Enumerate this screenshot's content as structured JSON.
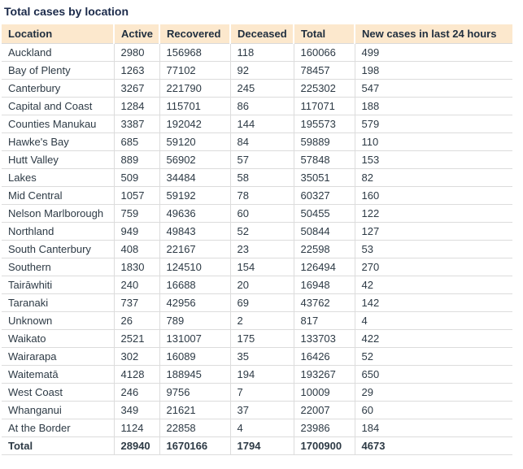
{
  "title": "Total cases by location",
  "chart_data": {
    "type": "table",
    "title": "Total cases by location",
    "columns": [
      "Location",
      "Active",
      "Recovered",
      "Deceased",
      "Total",
      "New cases in last 24 hours"
    ],
    "rows": [
      [
        "Auckland",
        "2980",
        "156968",
        "118",
        "160066",
        "499"
      ],
      [
        "Bay of Plenty",
        "1263",
        "77102",
        "92",
        "78457",
        "198"
      ],
      [
        "Canterbury",
        "3267",
        "221790",
        "245",
        "225302",
        "547"
      ],
      [
        "Capital and Coast",
        "1284",
        "115701",
        "86",
        "117071",
        "188"
      ],
      [
        "Counties Manukau",
        "3387",
        "192042",
        "144",
        "195573",
        "579"
      ],
      [
        "Hawke's Bay",
        "685",
        "59120",
        "84",
        "59889",
        "110"
      ],
      [
        "Hutt Valley",
        "889",
        "56902",
        "57",
        "57848",
        "153"
      ],
      [
        "Lakes",
        "509",
        "34484",
        "58",
        "35051",
        "82"
      ],
      [
        "Mid Central",
        "1057",
        "59192",
        "78",
        "60327",
        "160"
      ],
      [
        "Nelson Marlborough",
        "759",
        "49636",
        "60",
        "50455",
        "122"
      ],
      [
        "Northland",
        "949",
        "49843",
        "52",
        "50844",
        "127"
      ],
      [
        "South Canterbury",
        "408",
        "22167",
        "23",
        "22598",
        "53"
      ],
      [
        "Southern",
        "1830",
        "124510",
        "154",
        "126494",
        "270"
      ],
      [
        "Tairāwhiti",
        "240",
        "16688",
        "20",
        "16948",
        "42"
      ],
      [
        "Taranaki",
        "737",
        "42956",
        "69",
        "43762",
        "142"
      ],
      [
        "Unknown",
        "26",
        "789",
        "2",
        "817",
        "4"
      ],
      [
        "Waikato",
        "2521",
        "131007",
        "175",
        "133703",
        "422"
      ],
      [
        "Wairarapa",
        "302",
        "16089",
        "35",
        "16426",
        "52"
      ],
      [
        "Waitematā",
        "4128",
        "188945",
        "194",
        "193267",
        "650"
      ],
      [
        "West Coast",
        "246",
        "9756",
        "7",
        "10009",
        "29"
      ],
      [
        "Whanganui",
        "349",
        "21621",
        "37",
        "22007",
        "60"
      ],
      [
        "At the Border",
        "1124",
        "22858",
        "4",
        "23986",
        "184"
      ]
    ],
    "total_row": [
      "Total",
      "28940",
      "1670166",
      "1794",
      "1700900",
      "4673"
    ]
  },
  "colors": {
    "header_bg": "#fce8cd",
    "border": "#dcdcdc",
    "title_text": "#1b2a4a",
    "body_text": "#2d3a45"
  }
}
